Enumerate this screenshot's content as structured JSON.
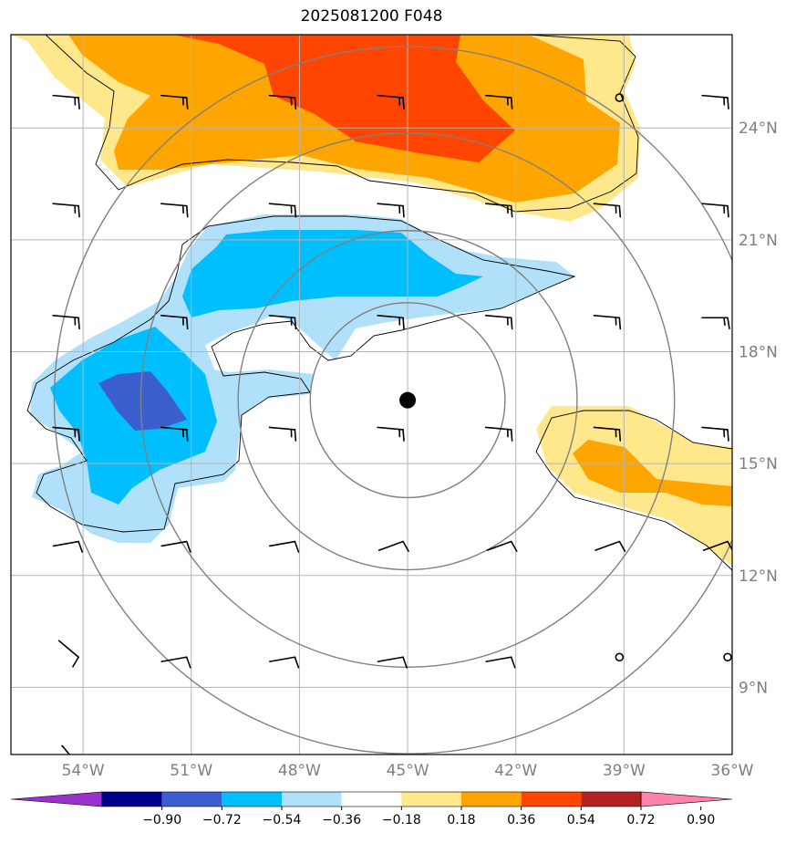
{
  "title": "2025081200 F048",
  "map": {
    "lon_range": [
      -56,
      -36
    ],
    "lat_range": [
      7.2,
      26.5
    ],
    "lon_ticks": [
      {
        "value": -54,
        "label": "54°W"
      },
      {
        "value": -51,
        "label": "51°W"
      },
      {
        "value": -48,
        "label": "48°W"
      },
      {
        "value": -45,
        "label": "45°W"
      },
      {
        "value": -42,
        "label": "42°W"
      },
      {
        "value": -39,
        "label": "39°W"
      },
      {
        "value": -36,
        "label": "36°W"
      }
    ],
    "lat_ticks": [
      {
        "value": 24,
        "label": "24°N"
      },
      {
        "value": 21,
        "label": "21°N"
      },
      {
        "value": 18,
        "label": "18°N"
      },
      {
        "value": 15,
        "label": "15°N"
      },
      {
        "value": 12,
        "label": "12°N"
      },
      {
        "value": 9,
        "label": "9°N"
      }
    ],
    "grid": true,
    "center": {
      "lon": -45,
      "lat": 16.7
    },
    "range_rings_deg": [
      2.7,
      4.7,
      7.4,
      9.8
    ]
  },
  "colorbar": {
    "labels": [
      "−0.90",
      "−0.72",
      "−0.54",
      "−0.36",
      "−0.18",
      "0.18",
      "0.36",
      "0.54",
      "0.72",
      "0.90"
    ],
    "colors": [
      "#9932cc",
      "#00008b",
      "#3a5fcd",
      "#00bfff",
      "#b0e0fa",
      "#ffffff",
      "#ffe88c",
      "#ffa500",
      "#ff4500",
      "#b22222",
      "#ff82ab"
    ],
    "extend": "both"
  }
}
